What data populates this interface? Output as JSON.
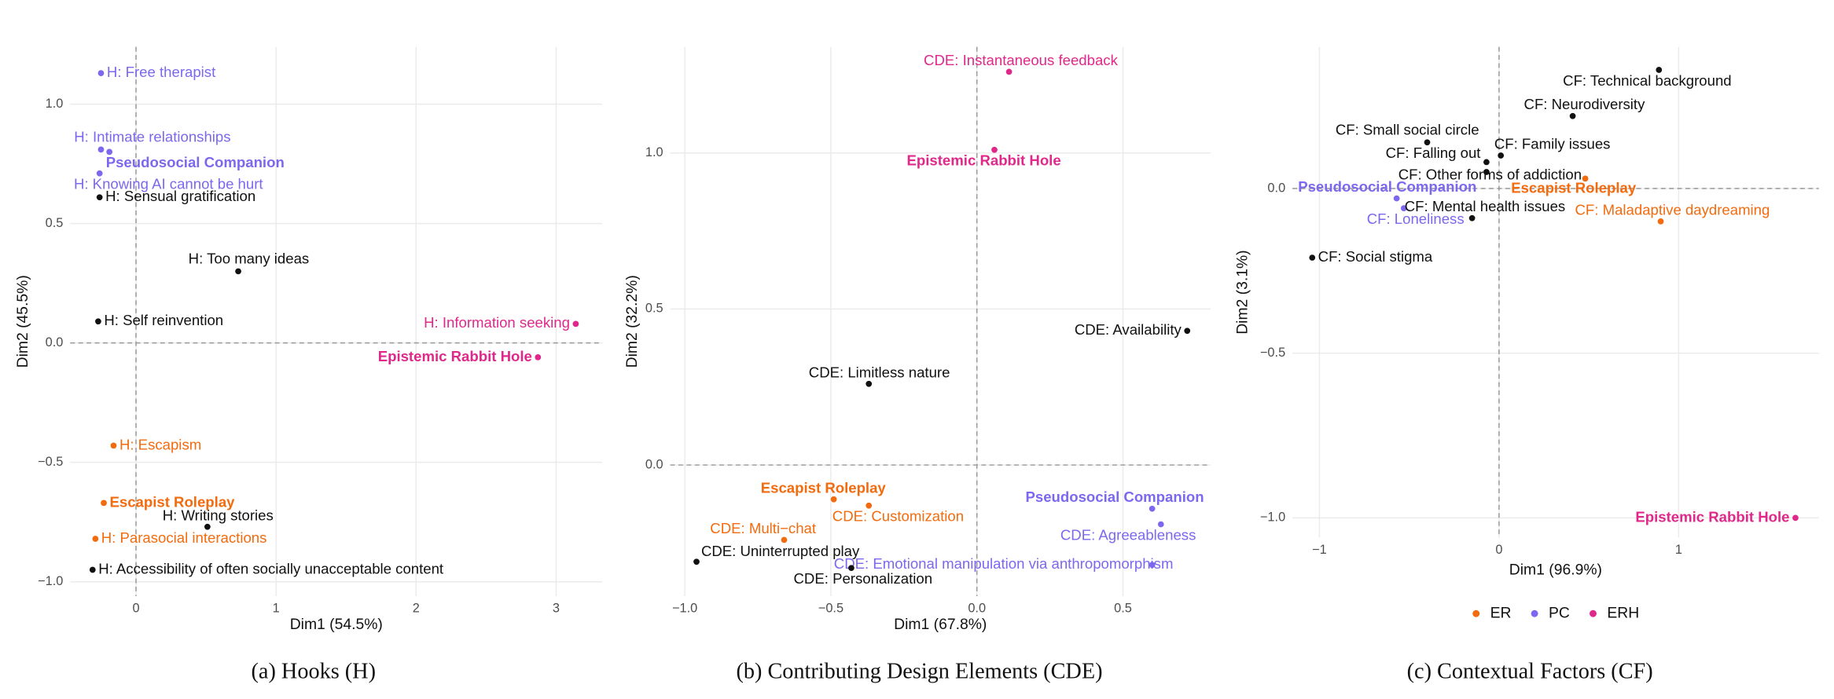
{
  "chart_data": [
    {
      "type": "scatter",
      "caption": "(a)  Hooks (H)",
      "xlabel": "Dim1 (54.5%)",
      "ylabel": "Dim2 (45.5%)",
      "xlim": [
        -0.47,
        3.33
      ],
      "ylim": [
        -1.06,
        1.24
      ],
      "xticks": [
        0,
        1,
        2,
        3
      ],
      "yticks": [
        {
          "value": -1,
          "label": "−1.0"
        },
        {
          "value": -0.5,
          "label": "−0.5"
        },
        {
          "value": 0,
          "label": "0.0"
        },
        0.5,
        {
          "value": 1,
          "label": "1.0"
        }
      ],
      "grid": true,
      "hline": 0,
      "vline": 0,
      "points": [
        {
          "label": "H: Free therapist",
          "x": -0.25,
          "y": 1.13,
          "color": "#7b68ee"
        },
        {
          "label": "H: Intimate relationships",
          "x": -0.25,
          "y": 0.81,
          "color": "#7b68ee"
        },
        {
          "label": "Pseudosocial Companion",
          "x": -0.19,
          "y": 0.8,
          "color": "#7b68ee",
          "bold": true
        },
        {
          "label": "H: Knowing AI cannot be hurt",
          "x": -0.26,
          "y": 0.71,
          "color": "#7b68ee"
        },
        {
          "label": "H: Sensual gratification",
          "x": -0.26,
          "y": 0.61,
          "color": "#111111"
        },
        {
          "label": "H: Too many ideas",
          "x": 0.73,
          "y": 0.3,
          "color": "#111111"
        },
        {
          "label": "H: Self reinvention",
          "x": -0.27,
          "y": 0.09,
          "color": "#111111"
        },
        {
          "label": "H: Information seeking",
          "x": 3.14,
          "y": 0.08,
          "color": "#e0288a"
        },
        {
          "label": "Epistemic Rabbit Hole",
          "x": 2.87,
          "y": -0.06,
          "color": "#e0288a",
          "bold": true
        },
        {
          "label": "H: Escapism",
          "x": -0.16,
          "y": -0.43,
          "color": "#f26b0f"
        },
        {
          "label": "Escapist Roleplay",
          "x": -0.23,
          "y": -0.67,
          "color": "#f26b0f",
          "bold": true
        },
        {
          "label": "H: Writing stories",
          "x": 0.51,
          "y": -0.77,
          "color": "#111111"
        },
        {
          "label": "H: Parasocial interactions",
          "x": -0.29,
          "y": -0.82,
          "color": "#f26b0f"
        },
        {
          "label": "H: Accessibility of often socially unacceptable content",
          "x": -0.31,
          "y": -0.95,
          "color": "#111111"
        }
      ]
    },
    {
      "type": "scatter",
      "caption": "(b)  Contributing Design Elements (CDE)",
      "xlabel": "Dim1 (67.8%)",
      "ylabel": "Dim2 (32.2%)",
      "xlim": [
        -1.05,
        0.8
      ],
      "ylim": [
        -0.42,
        1.34
      ],
      "xticks": [
        {
          "value": -1,
          "label": "−1.0"
        },
        {
          "value": -0.5,
          "label": "−0.5"
        },
        {
          "value": 0,
          "label": "0.0"
        },
        0.5
      ],
      "yticks": [
        {
          "value": 0,
          "label": "0.0"
        },
        0.5,
        {
          "value": 1,
          "label": "1.0"
        }
      ],
      "grid": true,
      "hline": 0,
      "vline": 0,
      "points": [
        {
          "label": "CDE: Instantaneous feedback",
          "x": 0.11,
          "y": 1.26,
          "color": "#e0288a"
        },
        {
          "label": "Epistemic Rabbit Hole",
          "x": 0.06,
          "y": 1.01,
          "color": "#e0288a",
          "bold": true
        },
        {
          "label": "CDE: Availability",
          "x": 0.72,
          "y": 0.43,
          "color": "#111111"
        },
        {
          "label": "CDE: Limitless nature",
          "x": -0.37,
          "y": 0.26,
          "color": "#111111"
        },
        {
          "label": "Escapist Roleplay",
          "x": -0.49,
          "y": -0.11,
          "color": "#f26b0f",
          "bold": true
        },
        {
          "label": "CDE: Customization",
          "x": -0.37,
          "y": -0.13,
          "color": "#f26b0f"
        },
        {
          "label": "CDE: Multi−chat",
          "x": -0.66,
          "y": -0.24,
          "color": "#f26b0f"
        },
        {
          "label": "CDE: Uninterrupted play",
          "x": -0.96,
          "y": -0.31,
          "color": "#111111"
        },
        {
          "label": "Pseudosocial Companion",
          "x": 0.6,
          "y": -0.14,
          "color": "#7b68ee",
          "bold": true
        },
        {
          "label": "CDE: Agreeableness",
          "x": 0.63,
          "y": -0.19,
          "color": "#7b68ee"
        },
        {
          "label": "CDE: Emotional manipulation via anthropomorphism",
          "x": 0.6,
          "y": -0.32,
          "color": "#7b68ee"
        },
        {
          "label": "CDE: Personalization",
          "x": -0.43,
          "y": -0.33,
          "color": "#111111"
        }
      ]
    },
    {
      "type": "scatter",
      "caption": "(c)  Contextual Factors (CF)",
      "xlabel": "Dim1 (96.9%)",
      "ylabel": "Dim2 (3.1%)",
      "xlim": [
        -1.15,
        1.78
      ],
      "ylim": [
        -1.06,
        0.43
      ],
      "xticks": [
        {
          "value": -1,
          "label": "−1"
        },
        0,
        1
      ],
      "yticks": [
        {
          "value": -1,
          "label": "−1.0"
        },
        {
          "value": -0.5,
          "label": "−0.5"
        },
        {
          "value": 0,
          "label": "0.0"
        }
      ],
      "grid": true,
      "hline": 0,
      "vline": 0,
      "legend": [
        {
          "name": "ER",
          "color": "#f26b0f"
        },
        {
          "name": "PC",
          "color": "#7b68ee"
        },
        {
          "name": "ERH",
          "color": "#e0288a"
        }
      ],
      "points": [
        {
          "label": "CF: Technical background",
          "x": 0.89,
          "y": 0.36,
          "color": "#111111"
        },
        {
          "label": "CF: Neurodiversity",
          "x": 0.41,
          "y": 0.22,
          "color": "#111111"
        },
        {
          "label": "CF: Small social circle",
          "x": -0.4,
          "y": 0.14,
          "color": "#111111"
        },
        {
          "label": "CF: Family issues",
          "x": 0.01,
          "y": 0.1,
          "color": "#111111"
        },
        {
          "label": "CF: Falling out",
          "x": -0.07,
          "y": 0.08,
          "color": "#111111"
        },
        {
          "label": "CF: Other forms of addiction",
          "x": -0.07,
          "y": 0.05,
          "color": "#111111"
        },
        {
          "label": "Escapist Roleplay",
          "x": 0.48,
          "y": 0.03,
          "color": "#f26b0f",
          "bold": true
        },
        {
          "label": "Pseudosocial Companion",
          "x": -0.57,
          "y": -0.03,
          "color": "#7b68ee",
          "bold": true
        },
        {
          "label": "CF: Loneliness",
          "x": -0.53,
          "y": -0.06,
          "color": "#7b68ee"
        },
        {
          "label": "CF: Mental health issues",
          "x": -0.15,
          "y": -0.09,
          "color": "#111111"
        },
        {
          "label": "CF: Maladaptive daydreaming",
          "x": 0.9,
          "y": -0.1,
          "color": "#f26b0f"
        },
        {
          "label": "CF: Social stigma",
          "x": -1.04,
          "y": -0.21,
          "color": "#111111"
        },
        {
          "label": "Epistemic Rabbit Hole",
          "x": 1.65,
          "y": -1.0,
          "color": "#e0288a",
          "bold": true
        }
      ]
    }
  ]
}
